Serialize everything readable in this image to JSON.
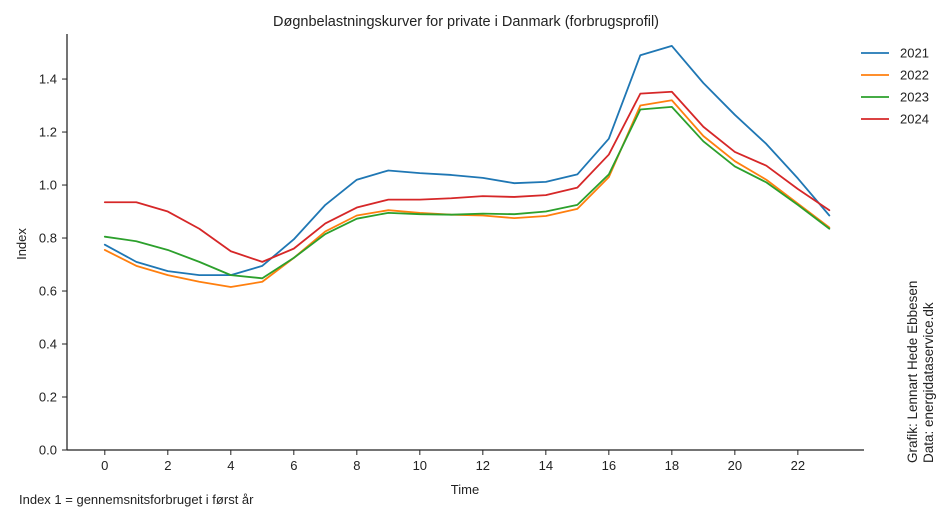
{
  "chart_data": {
    "type": "line",
    "title": "Døgnbelastningskurver for private i Danmark (forbrugsprofil)",
    "xlabel": "Time",
    "ylabel": "Index",
    "xlim": [
      -1.2,
      24.1
    ],
    "ylim": [
      0.0,
      1.57
    ],
    "xticks": [
      0,
      2,
      4,
      6,
      8,
      10,
      12,
      14,
      16,
      18,
      20,
      22
    ],
    "yticks": [
      0.0,
      0.2,
      0.4,
      0.6,
      0.8,
      1.0,
      1.2,
      1.4
    ],
    "grid": false,
    "legend_position": "top-right",
    "x": [
      0,
      1,
      2,
      3,
      4,
      5,
      6,
      7,
      8,
      9,
      10,
      11,
      12,
      13,
      14,
      15,
      16,
      17,
      18,
      19,
      20,
      21,
      22,
      23
    ],
    "series": [
      {
        "name": "2021",
        "color": "#1f77b4",
        "values": [
          0.775,
          0.71,
          0.675,
          0.66,
          0.66,
          0.695,
          0.795,
          0.925,
          1.02,
          1.055,
          1.045,
          1.038,
          1.027,
          1.007,
          1.012,
          1.04,
          1.175,
          1.49,
          1.525,
          1.385,
          1.265,
          1.155,
          1.025,
          0.885
        ]
      },
      {
        "name": "2022",
        "color": "#ff7f0e",
        "values": [
          0.755,
          0.695,
          0.66,
          0.635,
          0.615,
          0.635,
          0.725,
          0.825,
          0.885,
          0.905,
          0.895,
          0.888,
          0.885,
          0.875,
          0.883,
          0.91,
          1.03,
          1.3,
          1.32,
          1.185,
          1.09,
          1.02,
          0.93,
          0.84
        ]
      },
      {
        "name": "2023",
        "color": "#2ca02c",
        "values": [
          0.805,
          0.788,
          0.755,
          0.71,
          0.66,
          0.648,
          0.725,
          0.815,
          0.873,
          0.895,
          0.89,
          0.888,
          0.892,
          0.89,
          0.9,
          0.925,
          1.04,
          1.285,
          1.295,
          1.165,
          1.07,
          1.01,
          0.925,
          0.835
        ]
      },
      {
        "name": "2024",
        "color": "#d62728",
        "values": [
          0.935,
          0.935,
          0.9,
          0.835,
          0.75,
          0.71,
          0.76,
          0.855,
          0.915,
          0.945,
          0.945,
          0.95,
          0.958,
          0.955,
          0.962,
          0.99,
          1.115,
          1.345,
          1.352,
          1.22,
          1.125,
          1.073,
          0.985,
          0.905
        ]
      }
    ],
    "annotations": {
      "footnote": "Index 1 = gennemsnitsforbruget i først år",
      "credit_line1": "Grafik: Lennart Hede Ebbesen",
      "credit_line2": "Data: energidataservice.dk"
    }
  }
}
